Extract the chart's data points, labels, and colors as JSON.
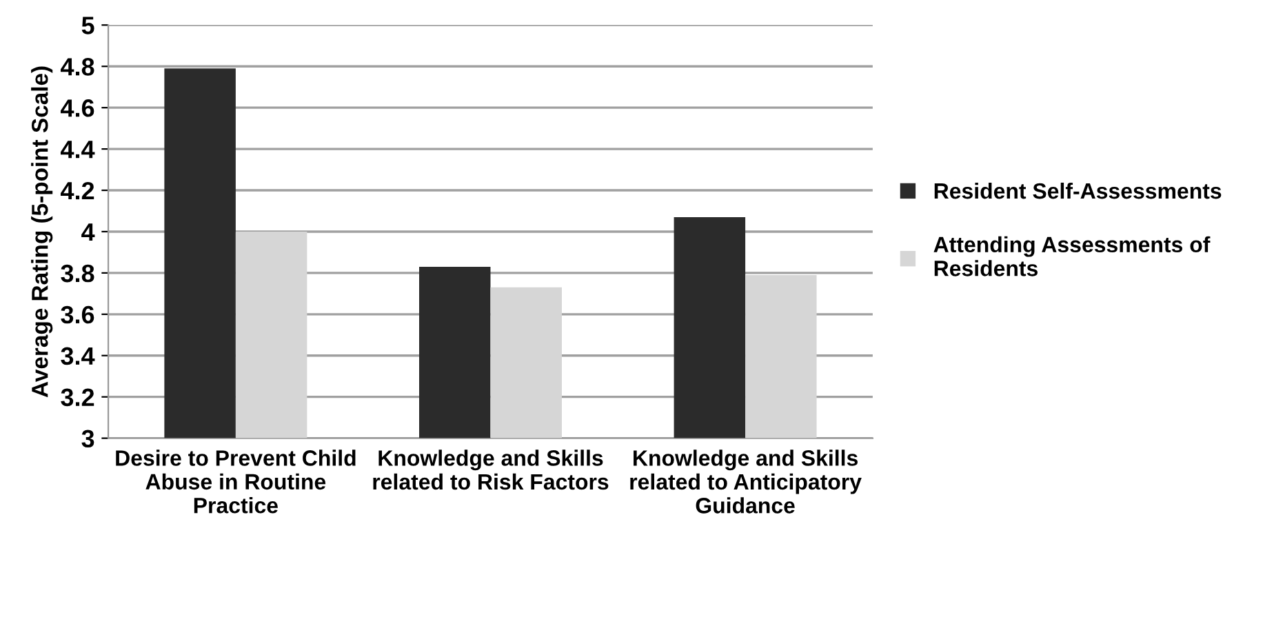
{
  "chart_data": {
    "type": "bar",
    "ylabel": "Average Rating (5-point Scale)",
    "categories": [
      "Desire to Prevent Child\nAbuse in Routine\nPractice",
      "Knowledge and Skills\nrelated to Risk Factors",
      "Knowledge and Skills\nrelated to Anticipatory\nGuidance"
    ],
    "series": [
      {
        "name": "Resident Self-Assessments",
        "color": "#2b2b2b",
        "values": [
          4.79,
          3.83,
          4.07
        ]
      },
      {
        "name": "Attending Assessments of\nResidents",
        "color": "#d6d6d6",
        "values": [
          4.0,
          3.73,
          3.79
        ]
      }
    ],
    "ylim": [
      3,
      5
    ],
    "yticks": [
      3,
      3.2,
      3.4,
      3.6,
      3.8,
      4,
      4.2,
      4.4,
      4.6,
      4.8,
      5
    ],
    "grid": "y",
    "legend": "right"
  }
}
